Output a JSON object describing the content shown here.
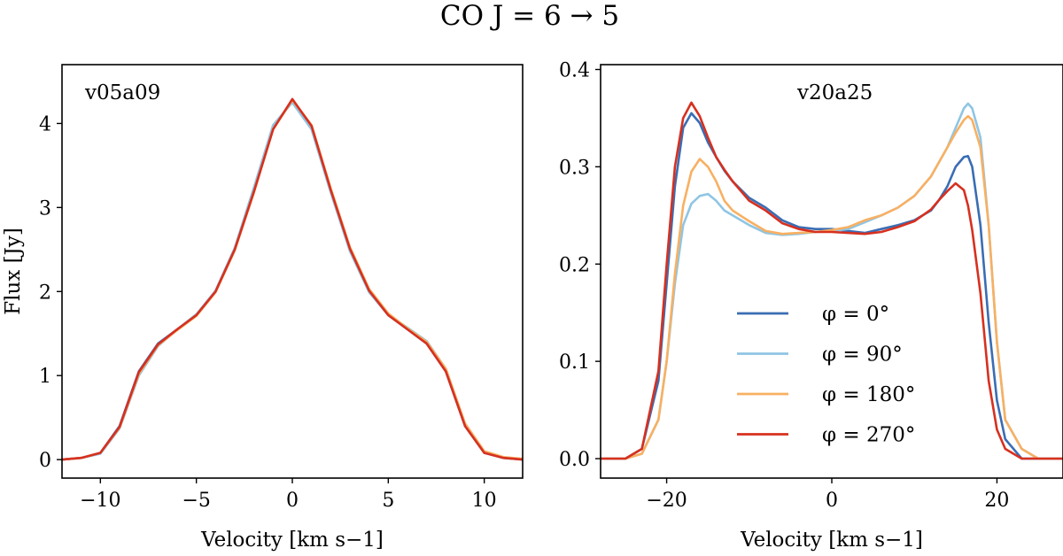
{
  "title": "CO J = 6 → 5",
  "colors": {
    "phi_0": "#3a6db4",
    "phi_90": "#8fc5e4",
    "phi_180": "#f8b062",
    "phi_270": "#d7301f"
  },
  "chart_data": [
    {
      "type": "line",
      "panel_label": "v05a09",
      "xlabel": "Velocity [km s−1]",
      "ylabel": "Flux [Jy]",
      "xlim": [
        -12,
        12
      ],
      "ylim": [
        -0.22,
        4.7
      ],
      "xticks": [
        -10,
        -5,
        0,
        5,
        10
      ],
      "xtick_labels": [
        "−10",
        "−5",
        "0",
        "5",
        "10"
      ],
      "yticks": [
        0,
        1,
        2,
        3,
        4
      ],
      "ytick_labels": [
        "0",
        "1",
        "2",
        "3",
        "4"
      ],
      "x": [
        -12,
        -11,
        -10,
        -9,
        -8,
        -7,
        -6,
        -5,
        -4,
        -3,
        -2,
        -1,
        0,
        1,
        2,
        3,
        4,
        5,
        6,
        7,
        8,
        9,
        10,
        11,
        12
      ],
      "series": [
        {
          "name": "φ = 0°",
          "color_key": "phi_0",
          "values": [
            0.0,
            0.02,
            0.08,
            0.4,
            1.05,
            1.38,
            1.55,
            1.72,
            2.0,
            2.5,
            3.2,
            3.95,
            4.27,
            3.95,
            3.2,
            2.5,
            2.0,
            1.72,
            1.55,
            1.38,
            1.05,
            0.4,
            0.08,
            0.02,
            0.0
          ]
        },
        {
          "name": "φ = 90°",
          "color_key": "phi_90",
          "values": [
            0.0,
            0.02,
            0.07,
            0.37,
            1.0,
            1.35,
            1.55,
            1.73,
            2.01,
            2.52,
            3.24,
            3.98,
            4.25,
            3.93,
            3.18,
            2.48,
            1.99,
            1.72,
            1.57,
            1.41,
            1.08,
            0.42,
            0.09,
            0.02,
            0.0
          ]
        },
        {
          "name": "φ = 180°",
          "color_key": "phi_180",
          "values": [
            0.0,
            0.02,
            0.08,
            0.38,
            1.02,
            1.36,
            1.54,
            1.71,
            1.99,
            2.49,
            3.18,
            3.93,
            4.28,
            3.98,
            3.23,
            2.53,
            2.03,
            1.74,
            1.56,
            1.4,
            1.08,
            0.43,
            0.1,
            0.03,
            0.01
          ]
        },
        {
          "name": "φ = 270°",
          "color_key": "phi_270",
          "values": [
            0.0,
            0.02,
            0.08,
            0.39,
            1.04,
            1.37,
            1.55,
            1.72,
            2.0,
            2.5,
            3.19,
            3.93,
            4.29,
            3.97,
            3.21,
            2.51,
            2.01,
            1.72,
            1.55,
            1.38,
            1.05,
            0.4,
            0.08,
            0.02,
            0.0
          ]
        }
      ]
    },
    {
      "type": "line",
      "panel_label": "v20a25",
      "xlabel": "Velocity [km s−1]",
      "ylabel": "",
      "xlim": [
        -28,
        28
      ],
      "ylim": [
        -0.02,
        0.405
      ],
      "xticks": [
        -20,
        0,
        20
      ],
      "xtick_labels": [
        "−20",
        "0",
        "20"
      ],
      "yticks": [
        0.0,
        0.1,
        0.2,
        0.3,
        0.4
      ],
      "ytick_labels": [
        "0.0",
        "0.1",
        "0.2",
        "0.3",
        "0.4"
      ],
      "legend_position": "center-right",
      "x": [
        -28,
        -25,
        -23,
        -21,
        -20,
        -19,
        -18,
        -17,
        -16,
        -15,
        -14,
        -13,
        -12,
        -10,
        -8,
        -6,
        -4,
        -2,
        0,
        2,
        4,
        6,
        8,
        10,
        12,
        13,
        14,
        15,
        16,
        16.5,
        17,
        18,
        19,
        20,
        21,
        23,
        25,
        28
      ],
      "series": [
        {
          "name": "φ = 0°",
          "color_key": "phi_0",
          "values": [
            0.0,
            0.0,
            0.01,
            0.08,
            0.18,
            0.28,
            0.34,
            0.355,
            0.345,
            0.325,
            0.31,
            0.296,
            0.285,
            0.268,
            0.258,
            0.245,
            0.238,
            0.236,
            0.236,
            0.234,
            0.232,
            0.236,
            0.24,
            0.245,
            0.255,
            0.266,
            0.28,
            0.3,
            0.31,
            0.311,
            0.3,
            0.24,
            0.14,
            0.06,
            0.02,
            0.0,
            0.0,
            0.0
          ]
        },
        {
          "name": "φ = 90°",
          "color_key": "phi_90",
          "values": [
            0.0,
            0.0,
            0.005,
            0.04,
            0.1,
            0.18,
            0.24,
            0.262,
            0.27,
            0.272,
            0.265,
            0.255,
            0.25,
            0.24,
            0.232,
            0.23,
            0.231,
            0.233,
            0.234,
            0.236,
            0.243,
            0.25,
            0.258,
            0.27,
            0.29,
            0.305,
            0.32,
            0.34,
            0.36,
            0.365,
            0.36,
            0.33,
            0.24,
            0.12,
            0.04,
            0.01,
            0.0,
            0.0
          ]
        },
        {
          "name": "φ = 180°",
          "color_key": "phi_180",
          "values": [
            0.0,
            0.0,
            0.005,
            0.04,
            0.1,
            0.19,
            0.26,
            0.295,
            0.308,
            0.3,
            0.285,
            0.265,
            0.255,
            0.244,
            0.234,
            0.231,
            0.232,
            0.233,
            0.235,
            0.238,
            0.245,
            0.25,
            0.258,
            0.27,
            0.29,
            0.305,
            0.32,
            0.335,
            0.348,
            0.352,
            0.348,
            0.32,
            0.24,
            0.12,
            0.04,
            0.01,
            0.0,
            0.0
          ]
        },
        {
          "name": "φ = 270°",
          "color_key": "phi_270",
          "values": [
            0.0,
            0.0,
            0.01,
            0.09,
            0.2,
            0.3,
            0.35,
            0.366,
            0.352,
            0.33,
            0.31,
            0.297,
            0.285,
            0.265,
            0.255,
            0.242,
            0.236,
            0.233,
            0.233,
            0.232,
            0.231,
            0.233,
            0.238,
            0.244,
            0.256,
            0.266,
            0.275,
            0.283,
            0.276,
            0.26,
            0.235,
            0.17,
            0.08,
            0.03,
            0.01,
            0.0,
            0.0,
            0.0
          ]
        }
      ]
    }
  ]
}
